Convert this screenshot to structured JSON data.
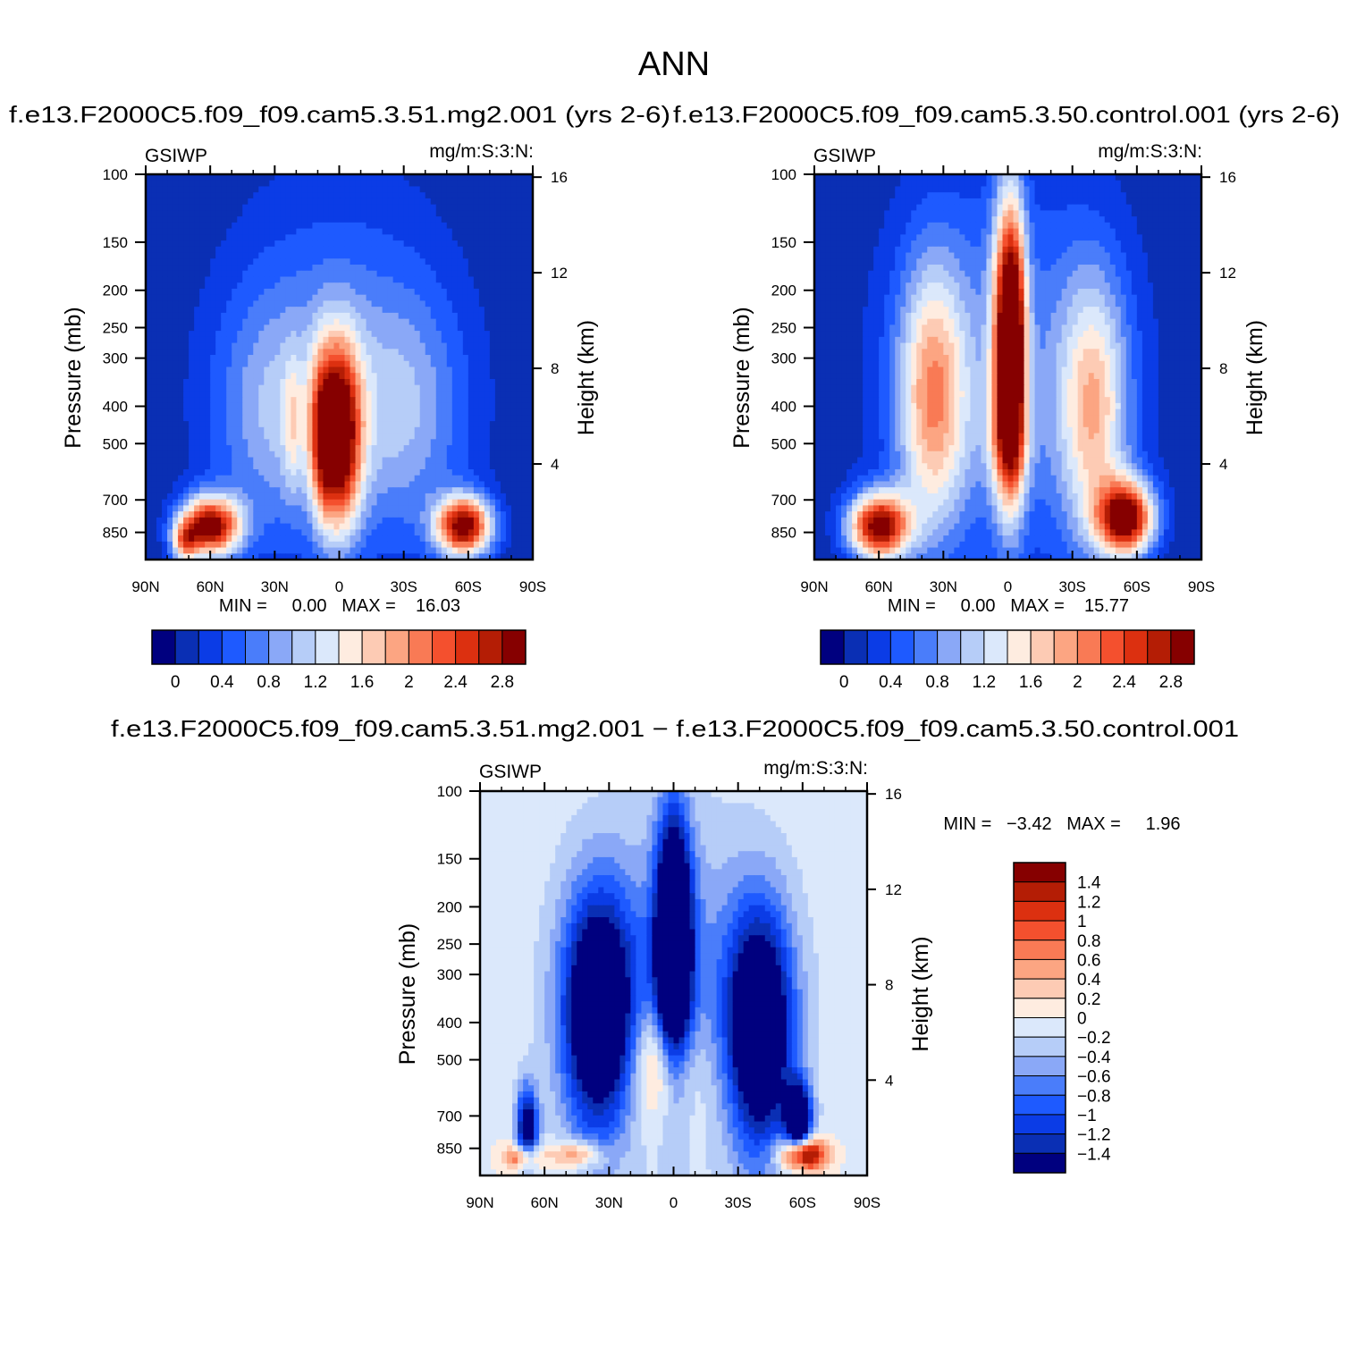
{
  "title": "ANN",
  "colors": {
    "scale": [
      "#00007f",
      "#0a2fb4",
      "#0b3ce6",
      "#1e5aff",
      "#4a7dfa",
      "#8aa8f7",
      "#b6cdf8",
      "#dbe8fb",
      "#feece0",
      "#fdcbb4",
      "#fca582",
      "#f97a55",
      "#f4502e",
      "#dc3010",
      "#b41d05",
      "#860000"
    ],
    "frame": "#000000"
  },
  "chart_data": [
    {
      "type": "heatmap",
      "title": "f.e13.F2000C5.f09_f09.cam5.3.51.mg2.001 (yrs 2-6)",
      "left_label": "GSIWP",
      "right_label": "mg/m:S:3:N:",
      "xlabel": "",
      "ylabel": "Pressure (mb)",
      "y2label": "Height (km)",
      "x_ticks": [
        "90N",
        "60N",
        "30N",
        "0",
        "30S",
        "60S",
        "90S"
      ],
      "y_ticks": [
        100,
        150,
        200,
        250,
        300,
        400,
        500,
        700,
        850
      ],
      "y2_ticks": [
        16,
        12,
        8,
        4
      ],
      "ylim": [
        100,
        1000
      ],
      "y_scale": "log",
      "stats": "MIN =     0.00   MAX =    16.03",
      "colorbar_labels": [
        "0",
        "0.4",
        "0.8",
        "1.2",
        "1.6",
        "2",
        "2.4",
        "2.8"
      ],
      "colorbar_orientation": "horizontal",
      "features": [
        {
          "name": "tropical upper maximum",
          "lat": 0,
          "p_mb": 500,
          "value": 2.8
        },
        {
          "name": "NH midlatitude low-level maximum",
          "lat": 60,
          "p_mb": 850,
          "value": 2.8
        },
        {
          "name": "SH midlatitude low-level maximum",
          "lat": -60,
          "p_mb": 850,
          "value": 2.8
        }
      ]
    },
    {
      "type": "heatmap",
      "title": "f.e13.F2000C5.f09_f09.cam5.3.50.control.001 (yrs 2-6)",
      "left_label": "GSIWP",
      "right_label": "mg/m:S:3:N:",
      "xlabel": "",
      "ylabel": "Pressure (mb)",
      "y2label": "Height (km)",
      "x_ticks": [
        "90N",
        "60N",
        "30N",
        "0",
        "30S",
        "60S",
        "90S"
      ],
      "y_ticks": [
        100,
        150,
        200,
        250,
        300,
        400,
        500,
        700,
        850
      ],
      "y2_ticks": [
        16,
        12,
        8,
        4
      ],
      "ylim": [
        100,
        1000
      ],
      "y_scale": "log",
      "stats": "MIN =     0.00   MAX =    15.77",
      "colorbar_labels": [
        "0",
        "0.4",
        "0.8",
        "1.2",
        "1.6",
        "2",
        "2.4",
        "2.8"
      ],
      "colorbar_orientation": "horizontal",
      "features": [
        {
          "name": "tropical upper maximum",
          "lat": 0,
          "p_mb": 270,
          "value": 2.8
        },
        {
          "name": "NH midlatitude low-level maximum",
          "lat": 60,
          "p_mb": 850,
          "value": 2.8
        },
        {
          "name": "SH midlatitude low-level maximum",
          "lat": -55,
          "p_mb": 800,
          "value": 2.8
        }
      ]
    },
    {
      "type": "heatmap",
      "title": "f.e13.F2000C5.f09_f09.cam5.3.51.mg2.001 − f.e13.F2000C5.f09_f09.cam5.3.50.control.001",
      "left_label": "GSIWP",
      "right_label": "mg/m:S:3:N:",
      "xlabel": "",
      "ylabel": "Pressure (mb)",
      "y2label": "Height (km)",
      "x_ticks": [
        "90N",
        "60N",
        "30N",
        "0",
        "30S",
        "60S",
        "90S"
      ],
      "y_ticks": [
        100,
        150,
        200,
        250,
        300,
        400,
        500,
        700,
        850
      ],
      "y2_ticks": [
        16,
        12,
        8,
        4
      ],
      "ylim": [
        100,
        1000
      ],
      "y_scale": "log",
      "stats": "MIN =   −3.42   MAX =     1.96",
      "colorbar_labels": [
        "1.4",
        "1.2",
        "1",
        "0.8",
        "0.6",
        "0.4",
        "0.2",
        "0",
        "−0.2",
        "−0.4",
        "−0.6",
        "−0.8",
        "−1",
        "−1.2",
        "−1.4"
      ],
      "colorbar_orientation": "vertical",
      "features": [
        {
          "name": "tropical upper minimum",
          "lat": 0,
          "p_mb": 250,
          "value": -1.4
        },
        {
          "name": "tropical mid-level positive",
          "lat": 5,
          "p_mb": 500,
          "value": 0.6
        },
        {
          "name": "SH low-level positive",
          "lat": -60,
          "p_mb": 850,
          "value": 1.4
        }
      ]
    }
  ]
}
